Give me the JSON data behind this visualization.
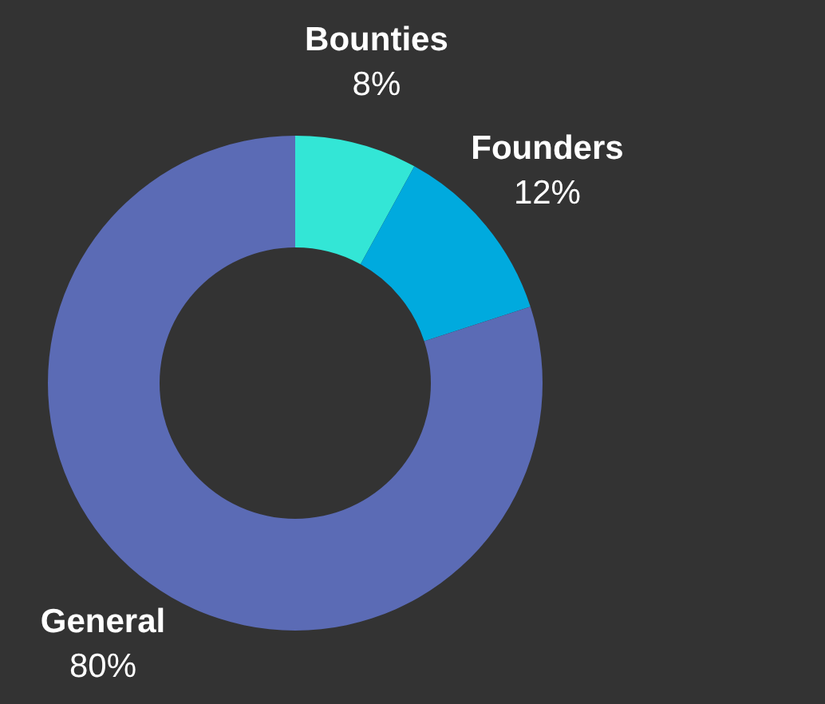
{
  "chart_data": {
    "type": "donut",
    "categories": [
      "Bounties",
      "Founders",
      "General"
    ],
    "values": [
      8,
      12,
      80
    ],
    "value_labels": [
      "8%",
      "12%",
      "80%"
    ],
    "colors": [
      "#33e6d6",
      "#00aade",
      "#5b6bb5"
    ]
  }
}
